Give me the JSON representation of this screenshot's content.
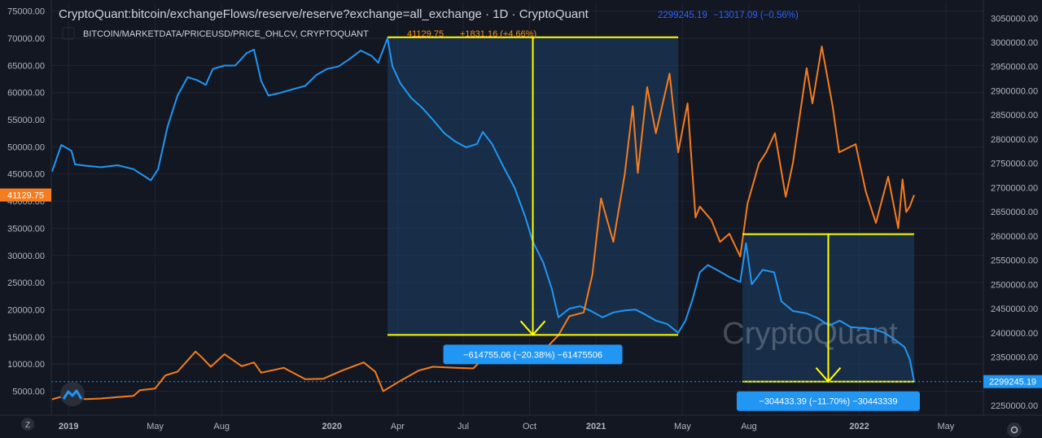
{
  "header": {
    "title": "CryptoQuant:bitcoin/exchangeFlows/reserve/reserve?exchange=all_exchange · 1D · CryptoQuant",
    "reserve_last": "2299245.19",
    "reserve_change": "−13017.09 (−0.56%)",
    "btc_title": "BITCOIN/MARKETDATA/PRICEUSD/PRICE_OHLCV, CRYPTOQUANT",
    "btc_last": "41129.75",
    "btc_change": "+1831.16 (+4.66%)"
  },
  "watermark": "CryptoQuant",
  "colors": {
    "background": "#131722",
    "reserve_line": "#2196f3",
    "price_line": "#f57c1f",
    "measure_outline": "#ffff00",
    "measure_fill": "#1e3f66",
    "label_bg": "#2196f3"
  },
  "measurements": [
    {
      "label": "−614755.06 (−20.38%) −61475506",
      "from": "2020-03-18",
      "to": "2021-04-25",
      "high": 3010500,
      "low": 2395750
    },
    {
      "label": "−304433.39 (−11.70%) −30443339",
      "from": "2021-07-23",
      "to": "2022-03-18",
      "high": 2603700,
      "low": 2299250
    }
  ],
  "chart_data": {
    "type": "line",
    "x_axis_ticks": [
      "2019",
      "May",
      "Aug",
      "2020",
      "Apr",
      "Jul",
      "Oct",
      "2021",
      "May",
      "Aug",
      "2022",
      "May"
    ],
    "x_range": [
      "2018-12-08",
      "2022-06-22"
    ],
    "series": [
      {
        "name": "CryptoQuant:bitcoin/exchangeFlows/reserve/reserve?exchange=all_exchange",
        "axis": "right",
        "points": [
          [
            "2018-12-09",
            2733000
          ],
          [
            "2018-12-22",
            2788000
          ],
          [
            "2019-01-05",
            2776000
          ],
          [
            "2019-01-10",
            2748000
          ],
          [
            "2019-01-25",
            2745000
          ],
          [
            "2019-02-15",
            2742000
          ],
          [
            "2019-03-10",
            2746000
          ],
          [
            "2019-04-01",
            2738000
          ],
          [
            "2019-04-25",
            2715000
          ],
          [
            "2019-05-05",
            2738000
          ],
          [
            "2019-05-18",
            2825000
          ],
          [
            "2019-06-01",
            2890000
          ],
          [
            "2019-06-15",
            2928000
          ],
          [
            "2019-06-28",
            2922000
          ],
          [
            "2019-07-10",
            2912000
          ],
          [
            "2019-07-20",
            2945000
          ],
          [
            "2019-08-05",
            2952000
          ],
          [
            "2019-08-20",
            2952000
          ],
          [
            "2019-09-05",
            2978000
          ],
          [
            "2019-09-15",
            2985000
          ],
          [
            "2019-09-25",
            2920000
          ],
          [
            "2019-10-05",
            2890000
          ],
          [
            "2019-10-20",
            2895000
          ],
          [
            "2019-11-05",
            2902000
          ],
          [
            "2019-11-25",
            2910000
          ],
          [
            "2019-12-10",
            2932000
          ],
          [
            "2019-12-25",
            2945000
          ],
          [
            "2020-01-10",
            2950000
          ],
          [
            "2020-01-25",
            2965000
          ],
          [
            "2020-02-10",
            2983000
          ],
          [
            "2020-02-25",
            2972000
          ],
          [
            "2020-03-05",
            2958000
          ],
          [
            "2020-03-18",
            3008000
          ],
          [
            "2020-03-25",
            2950000
          ],
          [
            "2020-04-05",
            2915000
          ],
          [
            "2020-04-20",
            2885000
          ],
          [
            "2020-05-05",
            2865000
          ],
          [
            "2020-05-20",
            2840000
          ],
          [
            "2020-06-05",
            2812000
          ],
          [
            "2020-06-20",
            2795000
          ],
          [
            "2020-07-05",
            2783000
          ],
          [
            "2020-07-20",
            2790000
          ],
          [
            "2020-07-28",
            2815000
          ],
          [
            "2020-08-10",
            2790000
          ],
          [
            "2020-08-25",
            2745000
          ],
          [
            "2020-09-10",
            2700000
          ],
          [
            "2020-09-25",
            2640000
          ],
          [
            "2020-10-05",
            2590000
          ],
          [
            "2020-10-20",
            2545000
          ],
          [
            "2020-11-01",
            2490000
          ],
          [
            "2020-11-10",
            2432000
          ],
          [
            "2020-11-25",
            2450000
          ],
          [
            "2020-12-10",
            2455000
          ],
          [
            "2020-12-25",
            2445000
          ],
          [
            "2021-01-10",
            2432000
          ],
          [
            "2021-01-25",
            2442000
          ],
          [
            "2021-02-10",
            2446000
          ],
          [
            "2021-02-25",
            2448000
          ],
          [
            "2021-03-10",
            2438000
          ],
          [
            "2021-03-25",
            2425000
          ],
          [
            "2021-04-10",
            2418000
          ],
          [
            "2021-04-25",
            2400000
          ],
          [
            "2021-05-05",
            2425000
          ],
          [
            "2021-05-15",
            2470000
          ],
          [
            "2021-05-25",
            2525000
          ],
          [
            "2021-06-05",
            2540000
          ],
          [
            "2021-06-20",
            2528000
          ],
          [
            "2021-07-05",
            2515000
          ],
          [
            "2021-07-20",
            2505000
          ],
          [
            "2021-07-28",
            2585000
          ],
          [
            "2021-08-05",
            2500000
          ],
          [
            "2021-08-20",
            2530000
          ],
          [
            "2021-09-05",
            2525000
          ],
          [
            "2021-09-15",
            2465000
          ],
          [
            "2021-10-01",
            2445000
          ],
          [
            "2021-10-20",
            2440000
          ],
          [
            "2021-11-05",
            2430000
          ],
          [
            "2021-11-20",
            2415000
          ],
          [
            "2021-12-05",
            2425000
          ],
          [
            "2021-12-20",
            2412000
          ],
          [
            "2022-01-05",
            2410000
          ],
          [
            "2022-01-20",
            2408000
          ],
          [
            "2022-02-05",
            2400000
          ],
          [
            "2022-02-20",
            2385000
          ],
          [
            "2022-03-05",
            2370000
          ],
          [
            "2022-03-12",
            2345000
          ],
          [
            "2022-03-18",
            2299245
          ]
        ]
      },
      {
        "name": "BITCOIN/MARKETDATA/PRICEUSD/PRICE_OHLCV, CRYPTOQUANT",
        "axis": "left",
        "points": [
          [
            "2018-12-09",
            3500
          ],
          [
            "2018-12-20",
            3900
          ],
          [
            "2019-01-05",
            3800
          ],
          [
            "2019-01-25",
            3550
          ],
          [
            "2019-02-15",
            3650
          ],
          [
            "2019-03-10",
            3900
          ],
          [
            "2019-04-01",
            4150
          ],
          [
            "2019-04-10",
            5200
          ],
          [
            "2019-05-01",
            5500
          ],
          [
            "2019-05-15",
            7900
          ],
          [
            "2019-06-01",
            8600
          ],
          [
            "2019-06-26",
            12300
          ],
          [
            "2019-07-05",
            11200
          ],
          [
            "2019-07-17",
            9500
          ],
          [
            "2019-08-05",
            11800
          ],
          [
            "2019-08-29",
            9600
          ],
          [
            "2019-09-15",
            10300
          ],
          [
            "2019-09-25",
            8400
          ],
          [
            "2019-10-26",
            9300
          ],
          [
            "2019-11-25",
            7200
          ],
          [
            "2019-12-20",
            7300
          ],
          [
            "2020-01-15",
            8800
          ],
          [
            "2020-02-14",
            10300
          ],
          [
            "2020-03-01",
            8600
          ],
          [
            "2020-03-12",
            5000
          ],
          [
            "2020-04-01",
            6600
          ],
          [
            "2020-04-30",
            8800
          ],
          [
            "2020-05-20",
            9500
          ],
          [
            "2020-06-20",
            9300
          ],
          [
            "2020-07-15",
            9200
          ],
          [
            "2020-08-01",
            11400
          ],
          [
            "2020-08-20",
            11900
          ],
          [
            "2020-09-05",
            10200
          ],
          [
            "2020-09-25",
            10700
          ],
          [
            "2020-10-10",
            11400
          ],
          [
            "2020-10-25",
            13100
          ],
          [
            "2020-11-10",
            15300
          ],
          [
            "2020-11-25",
            18800
          ],
          [
            "2020-12-15",
            19500
          ],
          [
            "2020-12-27",
            26500
          ],
          [
            "2021-01-08",
            40500
          ],
          [
            "2021-01-25",
            32500
          ],
          [
            "2021-02-10",
            45000
          ],
          [
            "2021-02-21",
            57500
          ],
          [
            "2021-02-28",
            45200
          ],
          [
            "2021-03-13",
            61000
          ],
          [
            "2021-03-25",
            52500
          ],
          [
            "2021-04-13",
            63500
          ],
          [
            "2021-04-25",
            49000
          ],
          [
            "2021-05-08",
            58000
          ],
          [
            "2021-05-19",
            37000
          ],
          [
            "2021-05-25",
            39000
          ],
          [
            "2021-06-10",
            36500
          ],
          [
            "2021-06-22",
            32500
          ],
          [
            "2021-07-05",
            34000
          ],
          [
            "2021-07-20",
            29800
          ],
          [
            "2021-07-30",
            39500
          ],
          [
            "2021-08-15",
            47000
          ],
          [
            "2021-08-25",
            49000
          ],
          [
            "2021-09-06",
            52500
          ],
          [
            "2021-09-21",
            40800
          ],
          [
            "2021-10-01",
            47000
          ],
          [
            "2021-10-20",
            64500
          ],
          [
            "2021-10-28",
            58000
          ],
          [
            "2021-11-10",
            68500
          ],
          [
            "2021-11-25",
            57500
          ],
          [
            "2021-12-04",
            49000
          ],
          [
            "2021-12-27",
            50500
          ],
          [
            "2022-01-10",
            41800
          ],
          [
            "2022-01-24",
            36000
          ],
          [
            "2022-02-10",
            44500
          ],
          [
            "2022-02-24",
            35000
          ],
          [
            "2022-03-02",
            44000
          ],
          [
            "2022-03-07",
            38000
          ],
          [
            "2022-03-12",
            39000
          ],
          [
            "2022-03-18",
            41129.75
          ]
        ]
      }
    ],
    "y_left": {
      "ticks": [
        5000,
        10000,
        15000,
        20000,
        25000,
        30000,
        35000,
        40000,
        45000,
        50000,
        55000,
        60000,
        65000,
        70000,
        75000
      ],
      "last_value_tag": "41129.75"
    },
    "y_right": {
      "ticks": [
        2250000,
        2300000,
        2350000,
        2400000,
        2450000,
        2500000,
        2550000,
        2600000,
        2650000,
        2700000,
        2750000,
        2800000,
        2850000,
        2900000,
        2950000,
        3000000,
        3050000
      ],
      "last_value_tag": "2299245.19"
    },
    "grid": true
  }
}
